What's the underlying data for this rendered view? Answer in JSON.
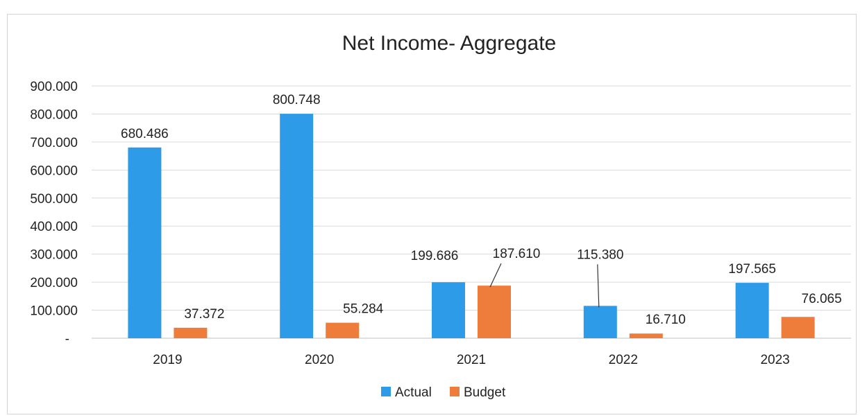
{
  "chart_data": {
    "type": "bar",
    "title": "Net Income- Aggregate",
    "categories": [
      "2019",
      "2020",
      "2021",
      "2022",
      "2023"
    ],
    "series": [
      {
        "name": "Actual",
        "color": "#2e9be8",
        "values": [
          680.486,
          800.748,
          199.686,
          115.38,
          197.565
        ],
        "labels": [
          "680.486",
          "800.748",
          "199.686",
          "115.380",
          "197.565"
        ]
      },
      {
        "name": "Budget",
        "color": "#ee7d3c",
        "values": [
          37.372,
          55.284,
          187.61,
          16.71,
          76.065
        ],
        "labels": [
          "37.372",
          "55.284",
          "187.610",
          "16.710",
          "76.065"
        ]
      }
    ],
    "y_ticks": [
      "-",
      "100.000",
      "200.000",
      "300.000",
      "400.000",
      "500.000",
      "600.000",
      "700.000",
      "800.000",
      "900.000"
    ],
    "ylim": [
      0,
      900
    ],
    "grid": true,
    "legend_position": "bottom"
  }
}
